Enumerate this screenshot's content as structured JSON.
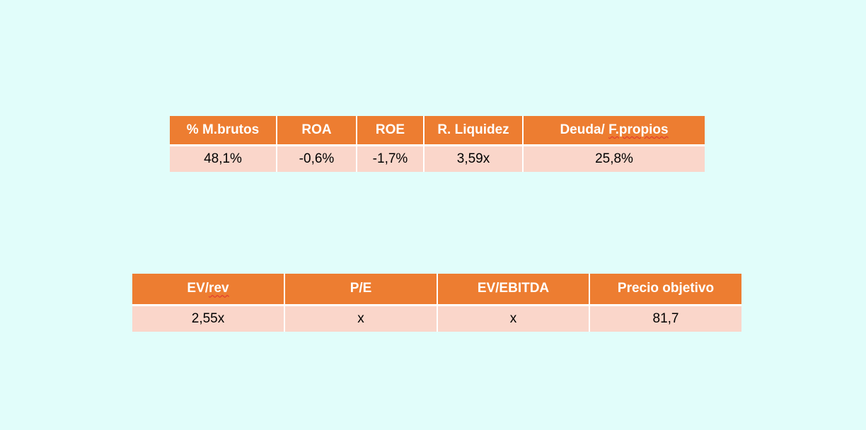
{
  "ratios": {
    "headers": [
      "% M.brutos",
      "ROA",
      "ROE",
      "R. Liquidez"
    ],
    "last_header_prefix": "Deuda/ ",
    "last_header_word": "F.propios",
    "values": [
      "48,1%",
      "-0,6%",
      "-1,7%",
      "3,59x",
      "25,8%"
    ]
  },
  "valuation": {
    "first_header_prefix": "EV/",
    "first_header_word": "rev",
    "headers": [
      "P/E",
      "EV/EBITDA",
      "Precio objetivo"
    ],
    "values": [
      "2,55x",
      "x",
      "x",
      "81,7"
    ]
  },
  "colors": {
    "background": "#e1fdfa",
    "header_fill": "#ed7d31",
    "header_text": "#ffffff",
    "cell_fill": "#fad6ca",
    "spellcheck_underline": "#e03030"
  }
}
